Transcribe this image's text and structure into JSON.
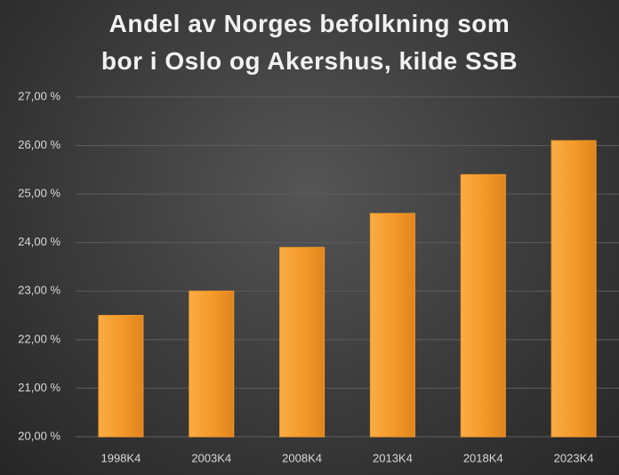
{
  "chart_data": {
    "type": "bar",
    "title": "Andel av Norges befolkning som bor i Oslo og Akershus, kilde SSB",
    "categories": [
      "1998K4",
      "2003K4",
      "2008K4",
      "2013K4",
      "2018K4",
      "2023K4"
    ],
    "values": [
      22.5,
      23.0,
      23.9,
      24.6,
      25.4,
      26.1
    ],
    "color": "#f59a2a",
    "ylim": [
      20,
      27
    ],
    "yticks": [
      {
        "value": 20,
        "label": "20,00 %"
      },
      {
        "value": 21,
        "label": "21,00 %"
      },
      {
        "value": 22,
        "label": "22,00 %"
      },
      {
        "value": 23,
        "label": "23,00 %"
      },
      {
        "value": 24,
        "label": "24,00 %"
      },
      {
        "value": 25,
        "label": "25,00 %"
      },
      {
        "value": 26,
        "label": "26,00 %"
      },
      {
        "value": 27,
        "label": "27,00 %"
      }
    ],
    "grid": true
  }
}
